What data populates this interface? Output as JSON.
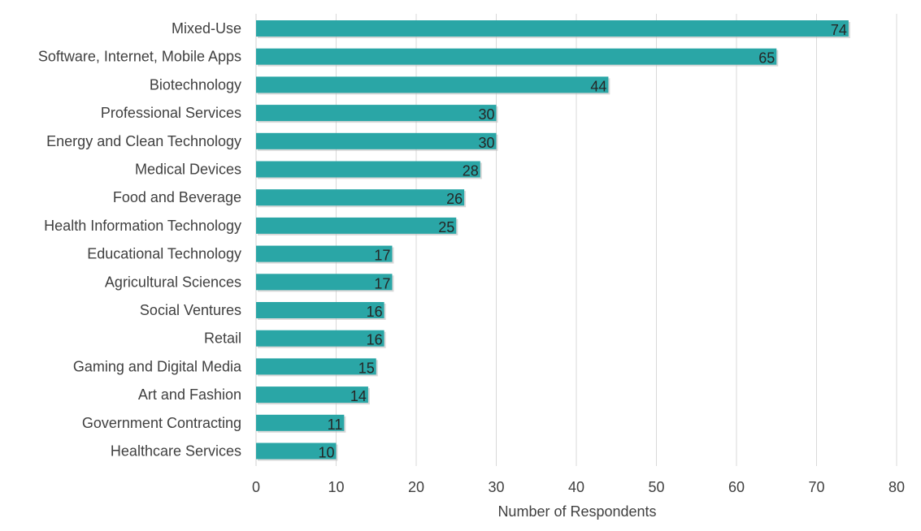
{
  "chart_data": {
    "type": "bar",
    "orientation": "horizontal",
    "categories": [
      "Mixed-Use",
      "Software, Internet, Mobile Apps",
      "Biotechnology",
      "Professional Services",
      "Energy and Clean Technology",
      "Medical Devices",
      "Food and Beverage",
      "Health Information Technology",
      "Educational Technology",
      "Agricultural Sciences",
      "Social Ventures",
      "Retail",
      "Gaming and Digital Media",
      "Art and Fashion",
      "Government Contracting",
      "Healthcare Services"
    ],
    "values": [
      74,
      65,
      44,
      30,
      30,
      28,
      26,
      25,
      17,
      17,
      16,
      16,
      15,
      14,
      11,
      10
    ],
    "xlabel": "Number  of Respondents",
    "xlim": [
      0,
      80
    ],
    "xticks": [
      0,
      10,
      20,
      30,
      40,
      50,
      60,
      70,
      80
    ],
    "grid": "vertical",
    "legend": "none",
    "bar_color": "#2aa6a6"
  }
}
